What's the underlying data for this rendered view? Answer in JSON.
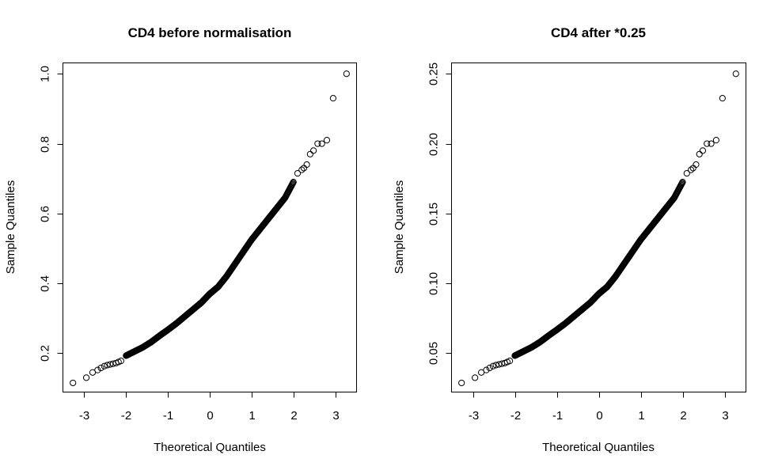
{
  "chart_data": [
    {
      "type": "scatter",
      "subtype": "qq-plot",
      "title": "CD4 before normalisation",
      "xlabel": "Theoretical Quantiles",
      "ylabel": "Sample Quantiles",
      "xlim": [
        -3.5,
        3.5
      ],
      "ylim": [
        0.09,
        1.03
      ],
      "xticks": [
        -3,
        -2,
        -1,
        0,
        1,
        2,
        3
      ],
      "xtick_labels": [
        "-3",
        "-2",
        "-1",
        "0",
        "1",
        "2",
        "3"
      ],
      "yticks": [
        0.2,
        0.4,
        0.6,
        0.8,
        1.0
      ],
      "ytick_labels": [
        "0.2",
        "0.4",
        "0.6",
        "0.8",
        "1.0"
      ],
      "grid": false,
      "legend": "none",
      "marker": "open-circle",
      "points": {
        "x": [
          -3.27,
          -2.95,
          -2.8,
          -2.68,
          -2.6,
          -2.52,
          -2.45,
          -2.38,
          -2.31,
          -2.24,
          -2.18,
          -2.12,
          -2.0,
          -1.8,
          -1.6,
          -1.4,
          -1.2,
          -1.0,
          -0.8,
          -0.6,
          -0.4,
          -0.2,
          0.0,
          0.2,
          0.4,
          0.6,
          0.8,
          1.0,
          1.2,
          1.4,
          1.6,
          1.8,
          2.0,
          2.1,
          2.2,
          2.25,
          2.32,
          2.4,
          2.48,
          2.58,
          2.68,
          2.8,
          2.95,
          3.27
        ],
        "y": [
          0.115,
          0.13,
          0.145,
          0.152,
          0.158,
          0.163,
          0.166,
          0.168,
          0.17,
          0.172,
          0.175,
          0.178,
          0.193,
          0.205,
          0.217,
          0.232,
          0.25,
          0.267,
          0.285,
          0.305,
          0.325,
          0.345,
          0.37,
          0.39,
          0.42,
          0.455,
          0.49,
          0.525,
          0.555,
          0.585,
          0.615,
          0.645,
          0.69,
          0.715,
          0.725,
          0.73,
          0.74,
          0.77,
          0.78,
          0.8,
          0.8,
          0.81,
          0.93,
          1.0
        ]
      }
    },
    {
      "type": "scatter",
      "subtype": "qq-plot",
      "title": "CD4 after *0.25",
      "xlabel": "Theoretical Quantiles",
      "ylabel": "Sample Quantiles",
      "xlim": [
        -3.5,
        3.5
      ],
      "ylim": [
        0.0225,
        0.2575
      ],
      "xticks": [
        -3,
        -2,
        -1,
        0,
        1,
        2,
        3
      ],
      "xtick_labels": [
        "-3",
        "-2",
        "-1",
        "0",
        "1",
        "2",
        "3"
      ],
      "yticks": [
        0.05,
        0.1,
        0.15,
        0.2,
        0.25
      ],
      "ytick_labels": [
        "0.05",
        "0.10",
        "0.15",
        "0.20",
        "0.25"
      ],
      "grid": false,
      "legend": "none",
      "marker": "open-circle",
      "points": {
        "x": [
          -3.27,
          -2.95,
          -2.8,
          -2.68,
          -2.6,
          -2.52,
          -2.45,
          -2.38,
          -2.31,
          -2.24,
          -2.18,
          -2.12,
          -2.0,
          -1.8,
          -1.6,
          -1.4,
          -1.2,
          -1.0,
          -0.8,
          -0.6,
          -0.4,
          -0.2,
          0.0,
          0.2,
          0.4,
          0.6,
          0.8,
          1.0,
          1.2,
          1.4,
          1.6,
          1.8,
          2.0,
          2.1,
          2.2,
          2.25,
          2.32,
          2.4,
          2.48,
          2.58,
          2.68,
          2.8,
          2.95,
          3.27
        ],
        "y": [
          0.02875,
          0.0325,
          0.03625,
          0.038,
          0.0395,
          0.04075,
          0.0415,
          0.042,
          0.0425,
          0.043,
          0.04375,
          0.0445,
          0.04825,
          0.05125,
          0.05425,
          0.058,
          0.0625,
          0.06675,
          0.07125,
          0.07625,
          0.08125,
          0.08625,
          0.0925,
          0.0975,
          0.105,
          0.11375,
          0.1225,
          0.13125,
          0.13875,
          0.14625,
          0.15375,
          0.16125,
          0.1725,
          0.17875,
          0.18125,
          0.1825,
          0.185,
          0.1925,
          0.195,
          0.2,
          0.2,
          0.2025,
          0.2325,
          0.25
        ]
      }
    }
  ]
}
